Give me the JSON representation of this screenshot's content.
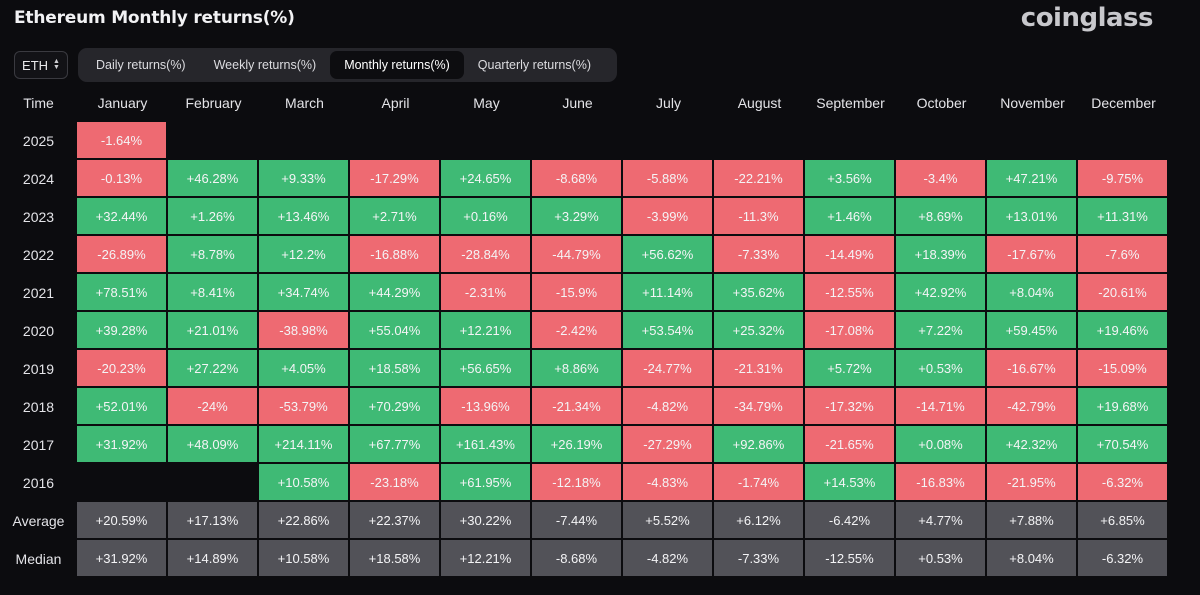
{
  "title": "Ethereum Monthly returns(%)",
  "brand": "coinglass",
  "asset_select": {
    "value": "ETH"
  },
  "tabs": [
    {
      "label": "Daily returns(%)",
      "active": false
    },
    {
      "label": "Weekly returns(%)",
      "active": false
    },
    {
      "label": "Monthly returns(%)",
      "active": true
    },
    {
      "label": "Quarterly returns(%)",
      "active": false
    }
  ],
  "colors": {
    "positive": "#3fba75",
    "negative": "#ee6a72",
    "summary": "#525258",
    "background": "#0c0c0f"
  },
  "table": {
    "corner": "Time",
    "months": [
      "January",
      "February",
      "March",
      "April",
      "May",
      "June",
      "July",
      "August",
      "September",
      "October",
      "November",
      "December"
    ],
    "rows": [
      {
        "label": "2025",
        "values": [
          "-1.64%",
          "",
          "",
          "",
          "",
          "",
          "",
          "",
          "",
          "",
          "",
          ""
        ]
      },
      {
        "label": "2024",
        "values": [
          "-0.13%",
          "+46.28%",
          "+9.33%",
          "-17.29%",
          "+24.65%",
          "-8.68%",
          "-5.88%",
          "-22.21%",
          "+3.56%",
          "-3.4%",
          "+47.21%",
          "-9.75%"
        ]
      },
      {
        "label": "2023",
        "values": [
          "+32.44%",
          "+1.26%",
          "+13.46%",
          "+2.71%",
          "+0.16%",
          "+3.29%",
          "-3.99%",
          "-11.3%",
          "+1.46%",
          "+8.69%",
          "+13.01%",
          "+11.31%"
        ]
      },
      {
        "label": "2022",
        "values": [
          "-26.89%",
          "+8.78%",
          "+12.2%",
          "-16.88%",
          "-28.84%",
          "-44.79%",
          "+56.62%",
          "-7.33%",
          "-14.49%",
          "+18.39%",
          "-17.67%",
          "-7.6%"
        ]
      },
      {
        "label": "2021",
        "values": [
          "+78.51%",
          "+8.41%",
          "+34.74%",
          "+44.29%",
          "-2.31%",
          "-15.9%",
          "+11.14%",
          "+35.62%",
          "-12.55%",
          "+42.92%",
          "+8.04%",
          "-20.61%"
        ]
      },
      {
        "label": "2020",
        "values": [
          "+39.28%",
          "+21.01%",
          "-38.98%",
          "+55.04%",
          "+12.21%",
          "-2.42%",
          "+53.54%",
          "+25.32%",
          "-17.08%",
          "+7.22%",
          "+59.45%",
          "+19.46%"
        ]
      },
      {
        "label": "2019",
        "values": [
          "-20.23%",
          "+27.22%",
          "+4.05%",
          "+18.58%",
          "+56.65%",
          "+8.86%",
          "-24.77%",
          "-21.31%",
          "+5.72%",
          "+0.53%",
          "-16.67%",
          "-15.09%"
        ]
      },
      {
        "label": "2018",
        "values": [
          "+52.01%",
          "-24%",
          "-53.79%",
          "+70.29%",
          "-13.96%",
          "-21.34%",
          "-4.82%",
          "-34.79%",
          "-17.32%",
          "-14.71%",
          "-42.79%",
          "+19.68%"
        ]
      },
      {
        "label": "2017",
        "values": [
          "+31.92%",
          "+48.09%",
          "+214.11%",
          "+67.77%",
          "+161.43%",
          "+26.19%",
          "-27.29%",
          "+92.86%",
          "-21.65%",
          "+0.08%",
          "+42.32%",
          "+70.54%"
        ]
      },
      {
        "label": "2016",
        "values": [
          "",
          "",
          "+10.58%",
          "-23.18%",
          "+61.95%",
          "-12.18%",
          "-4.83%",
          "-1.74%",
          "+14.53%",
          "-16.83%",
          "-21.95%",
          "-6.32%"
        ]
      }
    ],
    "summary": [
      {
        "label": "Average",
        "values": [
          "+20.59%",
          "+17.13%",
          "+22.86%",
          "+22.37%",
          "+30.22%",
          "-7.44%",
          "+5.52%",
          "+6.12%",
          "-6.42%",
          "+4.77%",
          "+7.88%",
          "+6.85%"
        ]
      },
      {
        "label": "Median",
        "values": [
          "+31.92%",
          "+14.89%",
          "+10.58%",
          "+18.58%",
          "+12.21%",
          "-8.68%",
          "-4.82%",
          "-7.33%",
          "-12.55%",
          "+0.53%",
          "+8.04%",
          "-6.32%"
        ]
      }
    ]
  }
}
